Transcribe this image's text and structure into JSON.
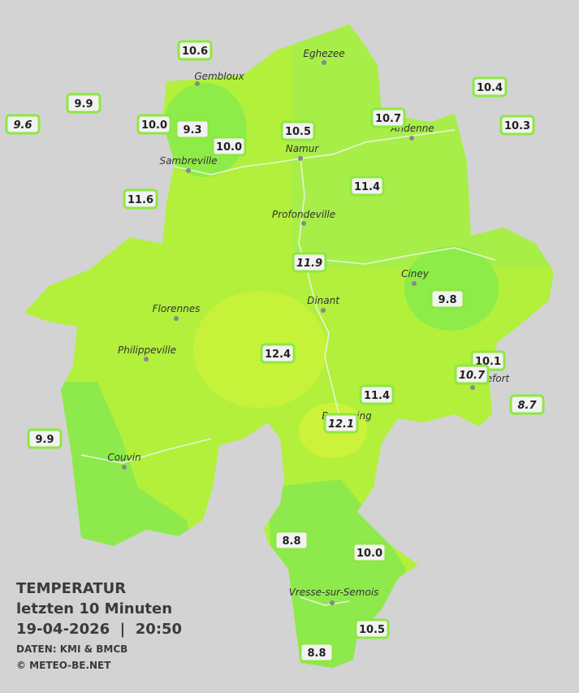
{
  "map": {
    "cities": [
      "Eghezee",
      "Gembloux",
      "Andenne",
      "Namur",
      "Sambreville",
      "Profondeville",
      "Ciney",
      "Dinant",
      "Florennes",
      "Philippeville",
      "Rochefort",
      "Beauraing",
      "Couvin",
      "Vresse-sur-Semois"
    ],
    "stations": [
      {
        "label": "10.6",
        "italic": false
      },
      {
        "label": "9.9",
        "italic": false
      },
      {
        "label": "9.6",
        "italic": true
      },
      {
        "label": "10.0",
        "italic": false
      },
      {
        "label": "9.3",
        "italic": false
      },
      {
        "label": "10.0",
        "italic": false
      },
      {
        "label": "10.5",
        "italic": false
      },
      {
        "label": "10.7",
        "italic": false
      },
      {
        "label": "10.4",
        "italic": false
      },
      {
        "label": "10.3",
        "italic": false
      },
      {
        "label": "11.6",
        "italic": false
      },
      {
        "label": "11.4",
        "italic": false
      },
      {
        "label": "11.9",
        "italic": true
      },
      {
        "label": "9.8",
        "italic": false
      },
      {
        "label": "12.4",
        "italic": false
      },
      {
        "label": "10.1",
        "italic": false
      },
      {
        "label": "10.7",
        "italic": true
      },
      {
        "label": "11.4",
        "italic": false
      },
      {
        "label": "8.7",
        "italic": true
      },
      {
        "label": "12.1",
        "italic": true
      },
      {
        "label": "9.9",
        "italic": false
      },
      {
        "label": "8.8",
        "italic": false
      },
      {
        "label": "10.0",
        "italic": false
      },
      {
        "label": "10.5",
        "italic": false
      },
      {
        "label": "8.8",
        "italic": false
      }
    ],
    "legend": {
      "title": "TEMPERATUR",
      "period": "letzten 10 Minuten",
      "datetime": "19-04-2026  |  20:50",
      "source": "DATEN: KMI & BMCB",
      "credit": "© METEO-BE.NET"
    }
  }
}
